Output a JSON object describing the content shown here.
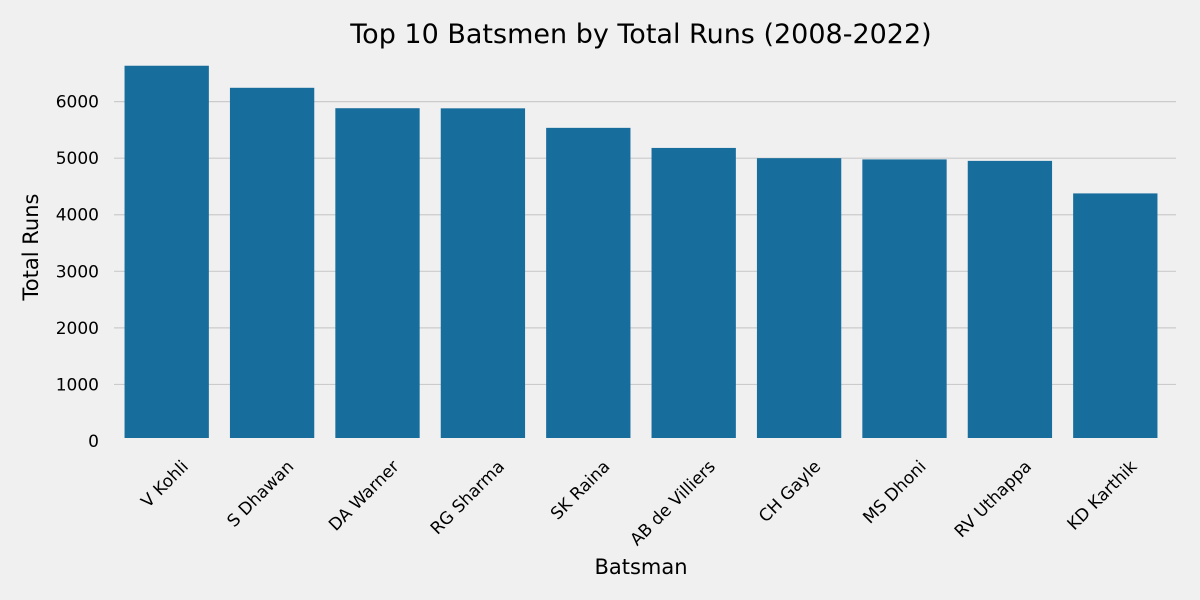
{
  "chart_data": {
    "type": "bar",
    "title": "Top 10 Batsmen by Total Runs (2008-2022)",
    "xlabel": "Batsman",
    "ylabel": "Total Runs",
    "categories": [
      "V Kohli",
      "S Dhawan",
      "DA Warner",
      "RG Sharma",
      "SK Raina",
      "AB de Villiers",
      "CH Gayle",
      "MS Dhoni",
      "RV Uthappa",
      "KD Karthik"
    ],
    "values": [
      6634,
      6244,
      5883,
      5881,
      5536,
      5181,
      5000,
      4978,
      4952,
      4377
    ],
    "ylim": [
      0,
      6700
    ],
    "yticks": [
      0,
      1000,
      2000,
      3000,
      4000,
      5000,
      6000
    ],
    "grid": true,
    "colors": {
      "bar": "#176d9c",
      "background": "#f0f0f0",
      "grid": "#cbcbcb"
    }
  }
}
